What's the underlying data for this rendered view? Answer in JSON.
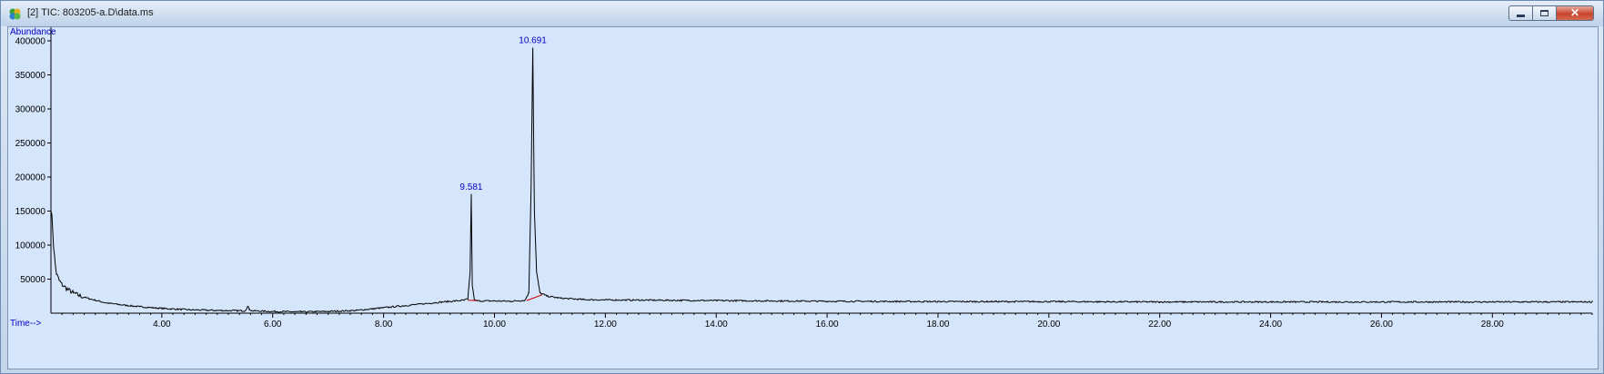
{
  "window": {
    "title": "[2] TIC: 803205-a.D\\data.ms",
    "icon": "chromatogram-app-icon",
    "buttons": [
      "minimize",
      "restore",
      "close"
    ]
  },
  "chart_data": {
    "type": "line",
    "ylabel": "Abundance",
    "xlabel": "Time-->",
    "xlim": [
      2.0,
      29.8
    ],
    "ylim": [
      0,
      420000
    ],
    "x_ticks": [
      "4.00",
      "6.00",
      "8.00",
      "10.00",
      "12.00",
      "14.00",
      "16.00",
      "18.00",
      "20.00",
      "22.00",
      "24.00",
      "26.00",
      "28.00"
    ],
    "y_ticks": [
      "50000",
      "100000",
      "150000",
      "200000",
      "250000",
      "300000",
      "350000",
      "400000"
    ],
    "grid": false,
    "series": [
      {
        "x": [
          2.0,
          2.02,
          2.05,
          2.08,
          2.1,
          2.15,
          2.2,
          2.3,
          2.4,
          2.5,
          2.7,
          3.0,
          3.3,
          3.6,
          4.0,
          4.5,
          5.0,
          5.5,
          5.55,
          5.58,
          5.62,
          6.0,
          6.5,
          7.0,
          7.5,
          8.0,
          8.5,
          9.0,
          9.3,
          9.45,
          9.52,
          9.56,
          9.581,
          9.6,
          9.64,
          9.7,
          10.0,
          10.3,
          10.55,
          10.62,
          10.66,
          10.691,
          10.72,
          10.76,
          10.82,
          10.95,
          11.2,
          11.6,
          12.0,
          14.0,
          16.0,
          18.0,
          20.0,
          22.0,
          24.0,
          26.0,
          28.0,
          29.8
        ],
        "y": [
          150000,
          140000,
          95000,
          70000,
          58000,
          48000,
          42000,
          35000,
          30000,
          26000,
          21000,
          15000,
          12000,
          9500,
          7000,
          5000,
          4000,
          3500,
          10000,
          6000,
          3500,
          2500,
          2000,
          2500,
          4000,
          8000,
          12000,
          16000,
          18000,
          19000,
          21000,
          60000,
          175000,
          40000,
          19000,
          18000,
          18000,
          17500,
          19000,
          30000,
          180000,
          390000,
          150000,
          60000,
          30000,
          25000,
          22000,
          20000,
          19500,
          18500,
          17500,
          17000,
          17000,
          16500,
          16500,
          16500,
          16500,
          16500
        ]
      }
    ],
    "annotations": [
      {
        "x": 9.581,
        "y": 175000,
        "label": "9.581"
      },
      {
        "x": 10.691,
        "y": 390000,
        "label": "10.691"
      }
    ],
    "colors": {
      "trace": "#000000",
      "peak_label": "#0000cc",
      "axis_label": "#0000cc",
      "baseline": "#cc0000",
      "background": "#d5e5fb"
    }
  }
}
